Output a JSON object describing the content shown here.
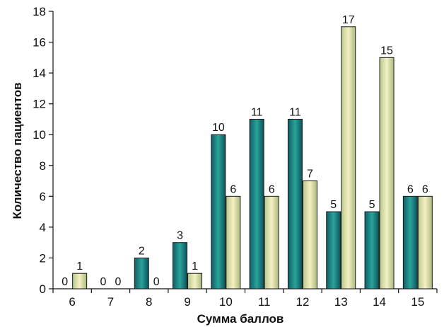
{
  "chart_data": {
    "type": "bar",
    "title": "",
    "xlabel": "Сумма баллов",
    "ylabel": "Количество пациентов",
    "categories": [
      "6",
      "7",
      "8",
      "9",
      "10",
      "11",
      "12",
      "13",
      "14",
      "15"
    ],
    "series": [
      {
        "values": [
          0,
          0,
          2,
          3,
          10,
          11,
          11,
          5,
          5,
          6
        ]
      },
      {
        "values": [
          1,
          0,
          0,
          1,
          6,
          6,
          7,
          17,
          15,
          6
        ]
      }
    ],
    "ylim": [
      0,
      18
    ],
    "yticks": [
      "0",
      "2",
      "4",
      "6",
      "8",
      "10",
      "12",
      "14",
      "16",
      "18"
    ],
    "grid": false,
    "legend": "none",
    "colors": {
      "series1": "#1f7d7a",
      "series2": "#d8dca0",
      "axis": "#111111"
    }
  }
}
